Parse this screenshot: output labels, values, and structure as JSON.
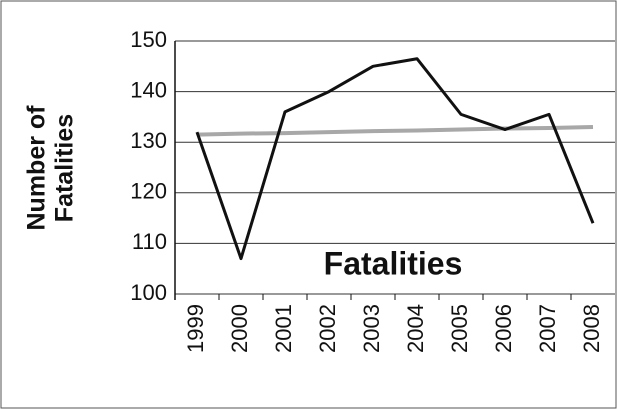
{
  "chart_data": {
    "type": "line",
    "ylabel": [
      "Number of",
      "Fatalities"
    ],
    "categories": [
      "1999",
      "2000",
      "2001",
      "2002",
      "2003",
      "2004",
      "2005",
      "2006",
      "2007",
      "2008"
    ],
    "series": [
      {
        "name": "Fatalities",
        "color": "#111111",
        "values": [
          132,
          107,
          136,
          140,
          145,
          146.5,
          135.5,
          132.5,
          135.5,
          114
        ]
      },
      {
        "color": "#a8a8a8",
        "values": [
          131.5,
          131.7,
          131.8,
          132.0,
          132.2,
          132.3,
          132.5,
          132.7,
          132.8,
          133.0
        ]
      }
    ],
    "ylim": [
      100,
      150
    ],
    "yticks": [
      100,
      110,
      120,
      130,
      140,
      150
    ],
    "grid": true
  }
}
